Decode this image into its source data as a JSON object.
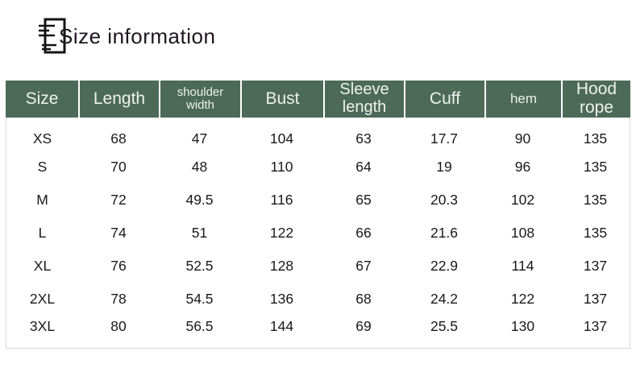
{
  "header": {
    "icon": "document-lines-icon",
    "title": "Size information"
  },
  "colors": {
    "table_header_bg": "#4d6a58",
    "table_header_text": "#eef2ec",
    "body_text": "#191919",
    "table_border": "#d9d9d9",
    "title_text": "#1e1520"
  },
  "table": {
    "columns": [
      {
        "id": "size",
        "label": "Size"
      },
      {
        "id": "length",
        "label": "Length"
      },
      {
        "id": "shoulder-width",
        "label": "shoulder width"
      },
      {
        "id": "bust",
        "label": "Bust"
      },
      {
        "id": "sleeve-length",
        "label": "Sleeve length"
      },
      {
        "id": "cuff",
        "label": "Cuff"
      },
      {
        "id": "hem",
        "label": "hem"
      },
      {
        "id": "hood-rope",
        "label": "Hood rope"
      }
    ],
    "rows": [
      {
        "cells": [
          "XS",
          "68",
          "47",
          "104",
          "63",
          "17.7",
          "90",
          "135"
        ]
      },
      {
        "cells": [
          "S",
          "70",
          "48",
          "110",
          "64",
          "19",
          "96",
          "135"
        ]
      },
      {
        "cells": [
          "M",
          "72",
          "49.5",
          "116",
          "65",
          "20.3",
          "102",
          "135"
        ]
      },
      {
        "cells": [
          "L",
          "74",
          "51",
          "122",
          "66",
          "21.6",
          "108",
          "135"
        ]
      },
      {
        "cells": [
          "XL",
          "76",
          "52.5",
          "128",
          "67",
          "22.9",
          "114",
          "137"
        ]
      },
      {
        "cells": [
          "2XL",
          "78",
          "54.5",
          "136",
          "68",
          "24.2",
          "122",
          "137"
        ]
      },
      {
        "cells": [
          "3XL",
          "80",
          "56.5",
          "144",
          "69",
          "25.5",
          "130",
          "137"
        ]
      }
    ]
  }
}
